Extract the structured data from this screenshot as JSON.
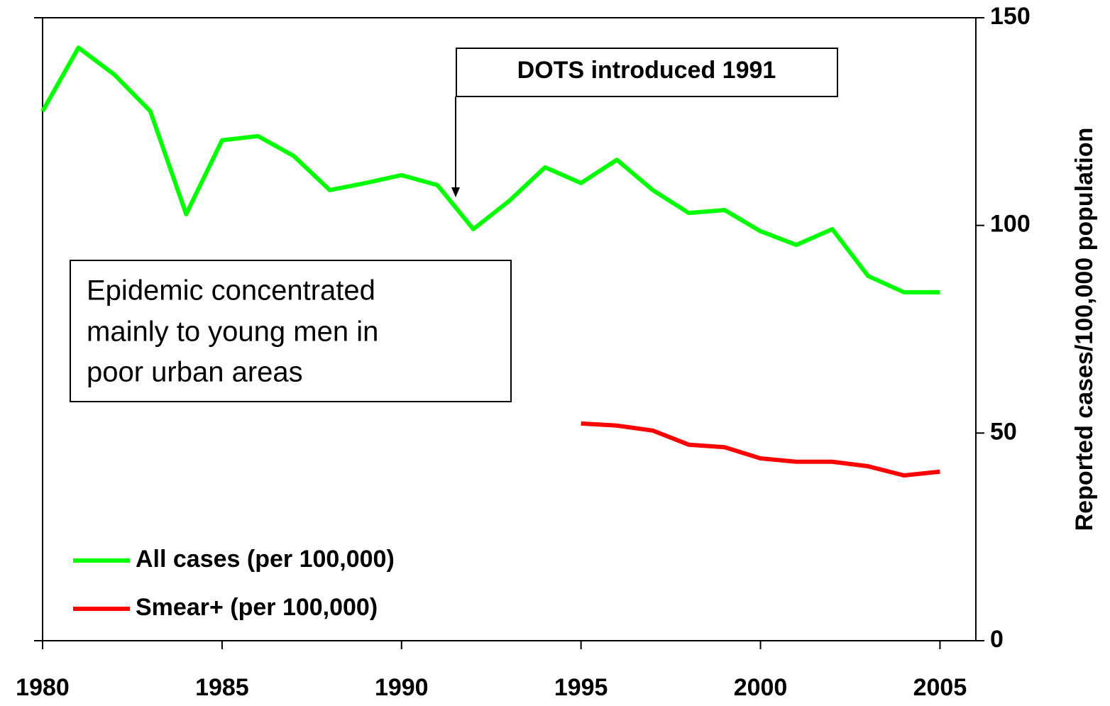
{
  "chart_data": {
    "type": "line",
    "y_axis_label": "Reported cases/100,000 population",
    "annotations": [
      "DOTS introduced 1991",
      "Epidemic concentrated",
      "mainly to young men in",
      "poor urban areas"
    ],
    "x": [
      1980,
      1981,
      1982,
      1983,
      1984,
      1985,
      1986,
      1987,
      1988,
      1989,
      1990,
      1991,
      1992,
      1993,
      1994,
      1995,
      1996,
      1997,
      1998,
      1999,
      2000,
      2001,
      2002,
      2003,
      2004,
      2005
    ],
    "series": [
      {
        "name": "All cases (per 100,000)",
        "color": "#00ff00",
        "values": [
          127.5,
          142.8,
          136.3,
          127.5,
          102.7,
          120.5,
          121.5,
          116.7,
          108.5,
          110.2,
          112.1,
          109.7,
          99.1,
          105.9,
          114.0,
          110.2,
          115.8,
          108.5,
          103.0,
          103.7,
          98.6,
          95.3,
          99.1,
          87.8,
          83.9,
          83.9
        ]
      },
      {
        "name": "Smear+ (per 100,000)",
        "color": "#ff0000",
        "values": [
          null,
          null,
          null,
          null,
          null,
          null,
          null,
          null,
          null,
          null,
          null,
          null,
          null,
          null,
          null,
          52.3,
          51.8,
          50.6,
          47.2,
          46.6,
          43.9,
          43.1,
          43.1,
          42.0,
          39.8,
          40.7
        ]
      }
    ],
    "xlim": [
      1980,
      2006
    ],
    "xticks": [
      1980,
      1985,
      1990,
      1995,
      2000,
      2005
    ],
    "ylim": [
      0,
      150
    ],
    "yticks": [
      0,
      50,
      100,
      150
    ],
    "legend": "lower left"
  }
}
